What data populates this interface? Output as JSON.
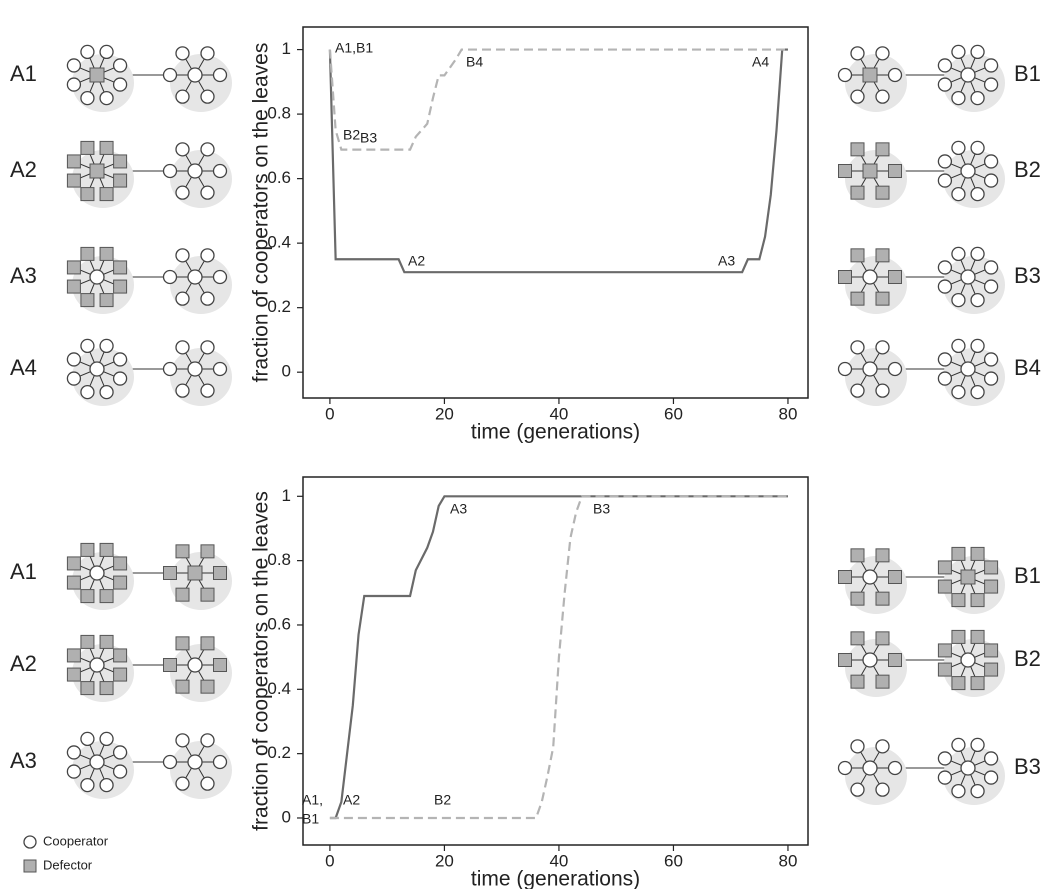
{
  "chart_data": [
    {
      "type": "line",
      "xlabel": "time (generations)",
      "ylabel": "fraction of cooperators on the leaves",
      "xlim": [
        -4.7,
        83.5
      ],
      "ylim": [
        -0.08,
        1.07
      ],
      "xticks": [
        0,
        20,
        40,
        60,
        80
      ],
      "yticks": [
        0,
        0.2,
        0.4,
        0.6,
        0.8,
        1
      ],
      "series": [
        {
          "color": "#6a6a6a",
          "style": "solid",
          "x": [
            0,
            1,
            12,
            13,
            72,
            73,
            75,
            76,
            77,
            78,
            79,
            80
          ],
          "values": [
            1,
            0.35,
            0.35,
            0.31,
            0.31,
            0.35,
            0.35,
            0.42,
            0.55,
            0.75,
            1,
            1
          ]
        },
        {
          "color": "#b4b4b4",
          "style": "dashed",
          "x": [
            0,
            1,
            2,
            14,
            15,
            17,
            18,
            19,
            20,
            22,
            23,
            80
          ],
          "values": [
            1,
            0.75,
            0.69,
            0.69,
            0.73,
            0.77,
            0.85,
            0.92,
            0.92,
            0.97,
            1,
            1
          ]
        }
      ],
      "annotations": [
        "A1,B1",
        "B2",
        "B3",
        "B4",
        "A2",
        "A3",
        "A4"
      ],
      "left_labels": [
        "A1",
        "A2",
        "A3",
        "A4"
      ],
      "right_labels": [
        "B1",
        "B2",
        "B3",
        "B4"
      ]
    },
    {
      "type": "line",
      "xlabel": "time (generations)",
      "ylabel": "fraction of cooperators on the leaves",
      "xlim": [
        -4.7,
        83.5
      ],
      "ylim": [
        -0.084,
        1.06
      ],
      "xticks": [
        0,
        20,
        40,
        60,
        80
      ],
      "yticks": [
        0,
        0.2,
        0.4,
        0.6,
        0.8,
        1
      ],
      "series": [
        {
          "color": "#6a6a6a",
          "style": "solid",
          "x": [
            0,
            1,
            2,
            3,
            4,
            5,
            6,
            14,
            15,
            17,
            18,
            19,
            20,
            80
          ],
          "values": [
            0,
            0,
            0.05,
            0.2,
            0.35,
            0.57,
            0.69,
            0.69,
            0.77,
            0.84,
            0.89,
            0.97,
            1,
            1
          ]
        },
        {
          "color": "#b4b4b4",
          "style": "dashed",
          "x": [
            0,
            36,
            37,
            38,
            39,
            40,
            41,
            42,
            43,
            44,
            80
          ],
          "values": [
            0,
            0,
            0.05,
            0.13,
            0.22,
            0.5,
            0.7,
            0.87,
            0.95,
            1,
            1
          ]
        }
      ],
      "annotations": [
        "A1,",
        "B1",
        "A2",
        "B2",
        "A3",
        "B3"
      ],
      "left_labels": [
        "A1",
        "A2",
        "A3"
      ],
      "right_labels": [
        "B1",
        "B2",
        "B3"
      ]
    }
  ],
  "legend": {
    "cooperator": "Cooperator",
    "defector": "Defector"
  }
}
